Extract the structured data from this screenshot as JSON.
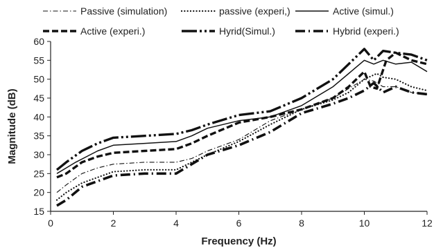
{
  "chart_data": {
    "type": "line",
    "xlabel": "Frequency (Hz)",
    "ylabel": "Magnitude (dB)",
    "xlim": [
      0,
      12
    ],
    "ylim": [
      15,
      60
    ],
    "xticks": [
      0,
      2,
      4,
      6,
      8,
      10,
      12
    ],
    "yticks": [
      15,
      20,
      25,
      30,
      35,
      40,
      45,
      50,
      55,
      60
    ],
    "grid": false,
    "legend_position": "top",
    "series": [
      {
        "name": "Passive (simulation)",
        "style": "dash-dot-thin",
        "x": [
          0.2,
          0.5,
          1,
          1.5,
          2,
          3,
          4,
          4.5,
          5,
          6,
          7,
          8,
          9,
          9.5,
          10,
          10.3,
          10.6,
          11,
          11.5,
          12
        ],
        "y": [
          20,
          22,
          25,
          26.5,
          27.5,
          28,
          28,
          29,
          31,
          34,
          39,
          42,
          45,
          47.5,
          50,
          49.5,
          48,
          48,
          46.5,
          46
        ]
      },
      {
        "name": "passive (experi,)",
        "style": "dotted",
        "x": [
          0.2,
          0.5,
          1,
          1.5,
          2,
          3,
          4,
          4.5,
          5,
          6,
          7,
          8,
          9,
          9.5,
          10,
          10.4,
          10.6,
          11,
          11.5,
          12
        ],
        "y": [
          18,
          20,
          22.5,
          24,
          25.5,
          26,
          26,
          28,
          30,
          33.5,
          38,
          42,
          44.5,
          46.5,
          50,
          51.5,
          50.5,
          50,
          48,
          47
        ]
      },
      {
        "name": "Active (simul.)",
        "style": "solid",
        "x": [
          0.2,
          0.5,
          0.8,
          1.5,
          2,
          3,
          4,
          4.5,
          5,
          6,
          7,
          8,
          9,
          9.5,
          10,
          10.3,
          10.6,
          11,
          11.5,
          12
        ],
        "y": [
          25,
          26.5,
          28,
          31,
          32.5,
          33,
          33.5,
          35,
          37,
          39,
          40,
          43,
          48,
          51.5,
          55,
          54,
          55,
          54,
          54.5,
          52
        ]
      },
      {
        "name": "Active (experi.)",
        "style": "dashed-thick",
        "x": [
          0.2,
          0.5,
          1,
          1.5,
          2,
          3,
          4,
          4.5,
          5,
          6,
          7,
          8,
          9,
          9.5,
          10,
          10.2,
          10.4,
          10.7,
          11,
          11.5,
          12
        ],
        "y": [
          24,
          25,
          28,
          29.5,
          30.5,
          31,
          31.5,
          33,
          35,
          38.5,
          40,
          42,
          45,
          48,
          52,
          48,
          47.5,
          55,
          57,
          55,
          54
        ]
      },
      {
        "name": "Hyrid(Simul.)",
        "style": "long-dash-thick",
        "x": [
          0.2,
          0.5,
          1,
          1.5,
          2,
          3,
          4,
          4.5,
          5,
          6,
          7,
          8,
          9,
          9.5,
          10,
          10.3,
          10.6,
          11,
          11.5,
          12
        ],
        "y": [
          26,
          28,
          31,
          33,
          34.5,
          35,
          35.5,
          36.5,
          38,
          40.5,
          41.5,
          45,
          50,
          54,
          58,
          55,
          57.5,
          57,
          56.5,
          55
        ]
      },
      {
        "name": "Hybrid (experi.)",
        "style": "dash-dot-thick",
        "x": [
          0.2,
          0.5,
          1,
          1.5,
          2,
          3,
          4,
          4.5,
          5,
          6,
          7,
          8,
          9,
          9.5,
          10,
          10.3,
          10.6,
          11,
          11.5,
          12
        ],
        "y": [
          16.5,
          18,
          21.5,
          23,
          24.5,
          25,
          25,
          27.5,
          30,
          32.5,
          36,
          41,
          43.5,
          45,
          47,
          49,
          46.5,
          48,
          46.5,
          46
        ]
      }
    ]
  }
}
